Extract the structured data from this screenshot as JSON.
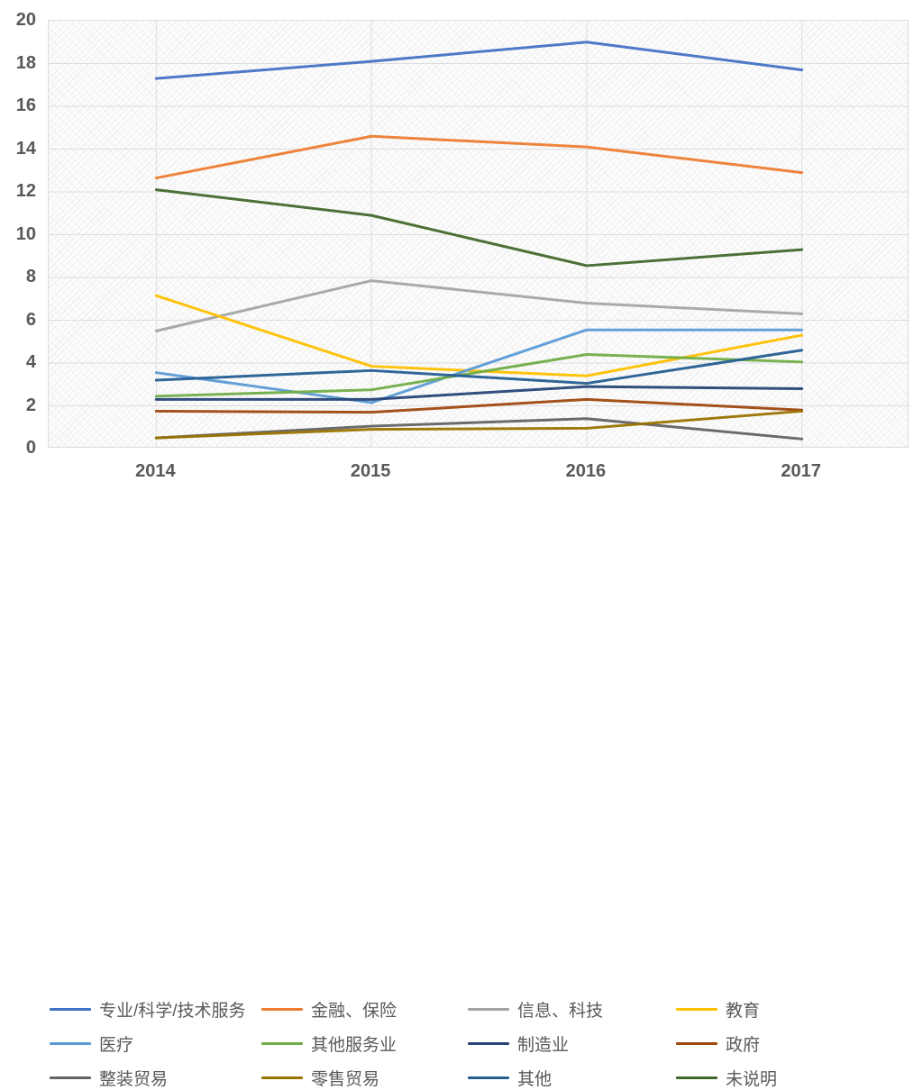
{
  "chart_data": {
    "type": "line",
    "categories": [
      "2014",
      "2015",
      "2016",
      "2017"
    ],
    "ylim": [
      0,
      20
    ],
    "ytick_step": 2,
    "grid": true,
    "legend_position": "bottom",
    "plot_background": "diagonal-hatch",
    "axis_label_color": "#595959",
    "gridline_color": "#dedede",
    "series": [
      {
        "name": "专业/科学/技术服务",
        "color": "#4472C4",
        "values": [
          17.3,
          18.1,
          19.0,
          17.7
        ]
      },
      {
        "name": "金融、保险",
        "color": "#ED7D31",
        "values": [
          12.65,
          14.6,
          14.1,
          12.9
        ]
      },
      {
        "name": "信息、科技",
        "color": "#A5A5A5",
        "values": [
          5.5,
          7.85,
          6.8,
          6.3
        ]
      },
      {
        "name": "教育",
        "color": "#FFC000",
        "values": [
          7.15,
          3.85,
          3.4,
          5.3
        ]
      },
      {
        "name": "医疗",
        "color": "#5B9BD5",
        "values": [
          3.55,
          2.15,
          5.55,
          5.55
        ]
      },
      {
        "name": "其他服务业",
        "color": "#70AD47",
        "values": [
          2.45,
          2.75,
          4.4,
          4.05
        ]
      },
      {
        "name": "制造业",
        "color": "#264478",
        "values": [
          2.3,
          2.3,
          2.9,
          2.8
        ]
      },
      {
        "name": "政府",
        "color": "#9E480E",
        "values": [
          1.75,
          1.7,
          2.3,
          1.8
        ]
      },
      {
        "name": "整装贸易",
        "color": "#636363",
        "values": [
          0.5,
          1.05,
          1.4,
          0.45
        ]
      },
      {
        "name": "零售贸易",
        "color": "#997300",
        "values": [
          0.5,
          0.9,
          0.95,
          1.75
        ]
      },
      {
        "name": "其他",
        "color": "#255E91",
        "values": [
          3.2,
          3.65,
          3.05,
          4.6
        ]
      },
      {
        "name": "未说明",
        "color": "#43682B",
        "values": [
          12.1,
          10.9,
          8.55,
          9.3
        ]
      }
    ]
  }
}
